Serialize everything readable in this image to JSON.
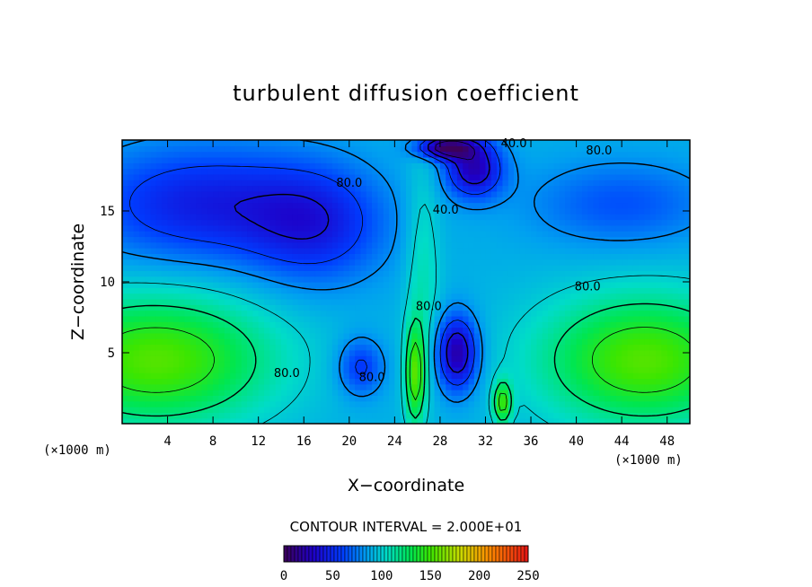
{
  "chart_data": {
    "type": "heatmap",
    "title": "turbulent diffusion coefficient",
    "xlabel": "X−coordinate",
    "ylabel": "Z−coordinate",
    "x_unit_left": "(×1000 m)",
    "x_unit_right": "(×1000 m)",
    "xlim": [
      0,
      50
    ],
    "ylim": [
      0,
      20
    ],
    "x_ticks": [
      4,
      8,
      12,
      16,
      20,
      24,
      28,
      32,
      36,
      40,
      44,
      48
    ],
    "y_ticks": [
      5,
      10,
      15
    ],
    "contour_interval_text": "CONTOUR INTERVAL = 2.000E+01",
    "contour_interval": 20,
    "contour_labels": [
      {
        "text": "80.0",
        "x": 20,
        "y": 16.7
      },
      {
        "text": "80.0",
        "x": 41,
        "y": 9.4
      },
      {
        "text": "80.0",
        "x": 42,
        "y": 19
      },
      {
        "text": "40.0",
        "x": 28.5,
        "y": 14.8
      },
      {
        "text": "40.0",
        "x": 34.5,
        "y": 19.5
      },
      {
        "text": "80.0",
        "x": 14.5,
        "y": 3.3
      },
      {
        "text": "80.0",
        "x": 27,
        "y": 8
      },
      {
        "text": "80.0",
        "x": 22,
        "y": 3
      }
    ],
    "colorbar": {
      "min": 0,
      "max": 250,
      "ticks": [
        "0",
        "50",
        "100",
        "150",
        "200",
        "250"
      ]
    },
    "field": {
      "background": 90,
      "features": [
        {
          "cx": 3,
          "cy": 4.5,
          "rx": 10,
          "ry": 4.5,
          "amp": 65
        },
        {
          "cx": 46,
          "cy": 4.5,
          "rx": 9,
          "ry": 4.5,
          "amp": 65
        },
        {
          "cx": 7,
          "cy": 15.5,
          "rx": 10,
          "ry": 4,
          "amp": -45
        },
        {
          "cx": 17,
          "cy": 14,
          "rx": 6,
          "ry": 4,
          "amp": -40
        },
        {
          "cx": 44,
          "cy": 15.5,
          "rx": 8,
          "ry": 3,
          "amp": -25
        },
        {
          "cx": 29.5,
          "cy": 5,
          "rx": 1.8,
          "ry": 2.6,
          "amp": -70
        },
        {
          "cx": 31,
          "cy": 18,
          "rx": 2.5,
          "ry": 2,
          "amp": -65
        },
        {
          "cx": 28.5,
          "cy": 19.5,
          "rx": 2.5,
          "ry": 0.8,
          "amp": -80
        },
        {
          "cx": 25.8,
          "cy": 3.5,
          "rx": 0.9,
          "ry": 3.5,
          "amp": 60
        },
        {
          "cx": 33.5,
          "cy": 1.5,
          "rx": 0.8,
          "ry": 1.5,
          "amp": 55
        },
        {
          "cx": 21,
          "cy": 4,
          "rx": 2,
          "ry": 2,
          "amp": -35
        },
        {
          "cx": 26.5,
          "cy": 11,
          "rx": 1.5,
          "ry": 8,
          "amp": 20
        }
      ]
    }
  }
}
